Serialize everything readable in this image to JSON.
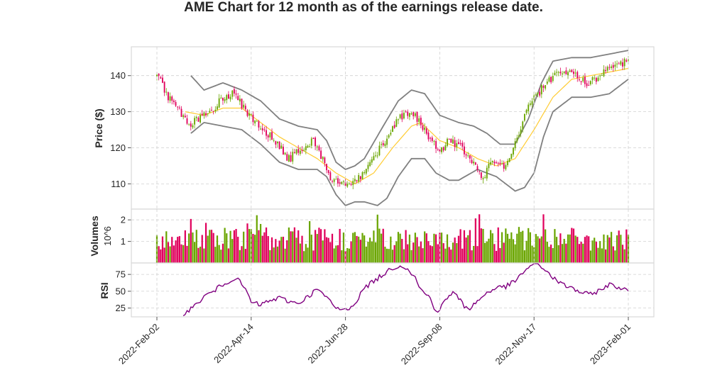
{
  "chart_data": {
    "type": "candlestick",
    "title": "AME Chart for 12 month as of the earnings release date.",
    "x_ticks": [
      "2022-Feb-02",
      "2022-Apr-14",
      "2022-Jun-28",
      "2022-Sep-08",
      "2022-Nov-17",
      "2023-Feb-01"
    ],
    "x_range_trading_days": [
      0,
      250
    ],
    "price_panel": {
      "ylabel": "Price ($)",
      "yticks": [
        110,
        120,
        130,
        140
      ],
      "ylim": [
        103,
        148
      ],
      "close_path_anchors": [
        [
          0,
          140
        ],
        [
          5,
          135
        ],
        [
          12,
          130
        ],
        [
          17,
          126
        ],
        [
          22,
          128
        ],
        [
          28,
          130
        ],
        [
          35,
          134
        ],
        [
          40,
          135
        ],
        [
          48,
          130
        ],
        [
          55,
          126
        ],
        [
          62,
          122
        ],
        [
          70,
          117
        ],
        [
          78,
          120
        ],
        [
          83,
          122
        ],
        [
          88,
          117
        ],
        [
          93,
          111
        ],
        [
          100,
          110
        ],
        [
          108,
          112
        ],
        [
          113,
          116
        ],
        [
          120,
          121
        ],
        [
          125,
          126
        ],
        [
          130,
          129
        ],
        [
          135,
          130
        ],
        [
          140,
          127
        ],
        [
          145,
          122
        ],
        [
          150,
          119
        ],
        [
          155,
          122
        ],
        [
          162,
          120
        ],
        [
          168,
          115
        ],
        [
          173,
          112
        ],
        [
          178,
          117
        ],
        [
          185,
          115
        ],
        [
          190,
          122
        ],
        [
          196,
          130
        ],
        [
          202,
          135
        ],
        [
          208,
          139
        ],
        [
          215,
          141
        ],
        [
          222,
          140
        ],
        [
          228,
          138
        ],
        [
          235,
          140
        ],
        [
          240,
          143
        ],
        [
          245,
          143
        ],
        [
          250,
          144
        ]
      ],
      "sma_anchors": [
        [
          15,
          130
        ],
        [
          25,
          129
        ],
        [
          35,
          131
        ],
        [
          45,
          131
        ],
        [
          55,
          127
        ],
        [
          65,
          123
        ],
        [
          75,
          120
        ],
        [
          85,
          117
        ],
        [
          95,
          113
        ],
        [
          105,
          110
        ],
        [
          115,
          113
        ],
        [
          125,
          120
        ],
        [
          135,
          126
        ],
        [
          140,
          127
        ],
        [
          150,
          122
        ],
        [
          160,
          120
        ],
        [
          170,
          117
        ],
        [
          180,
          115
        ],
        [
          190,
          117
        ],
        [
          200,
          125
        ],
        [
          210,
          134
        ],
        [
          220,
          139
        ],
        [
          230,
          140
        ],
        [
          240,
          141
        ],
        [
          250,
          142
        ]
      ],
      "bollinger_upper_anchors": [
        [
          18,
          140
        ],
        [
          25,
          136
        ],
        [
          35,
          138
        ],
        [
          45,
          136
        ],
        [
          55,
          133
        ],
        [
          65,
          128
        ],
        [
          75,
          126
        ],
        [
          85,
          125
        ],
        [
          90,
          122
        ],
        [
          95,
          116
        ],
        [
          100,
          114
        ],
        [
          105,
          115
        ],
        [
          110,
          117
        ],
        [
          120,
          126
        ],
        [
          128,
          133
        ],
        [
          135,
          136
        ],
        [
          142,
          135
        ],
        [
          150,
          129
        ],
        [
          160,
          127
        ],
        [
          168,
          126
        ],
        [
          175,
          124
        ],
        [
          182,
          121
        ],
        [
          190,
          121
        ],
        [
          197,
          128
        ],
        [
          204,
          138
        ],
        [
          210,
          144
        ],
        [
          220,
          145
        ],
        [
          230,
          145
        ],
        [
          240,
          146
        ],
        [
          250,
          147
        ]
      ],
      "bollinger_lower_anchors": [
        [
          18,
          124
        ],
        [
          25,
          127
        ],
        [
          35,
          126
        ],
        [
          45,
          125
        ],
        [
          55,
          121
        ],
        [
          65,
          116
        ],
        [
          75,
          114
        ],
        [
          85,
          114
        ],
        [
          90,
          112
        ],
        [
          95,
          107
        ],
        [
          100,
          104
        ],
        [
          105,
          105
        ],
        [
          110,
          105
        ],
        [
          117,
          104
        ],
        [
          122,
          106
        ],
        [
          128,
          112
        ],
        [
          135,
          117
        ],
        [
          142,
          117
        ],
        [
          148,
          113
        ],
        [
          155,
          111
        ],
        [
          160,
          111
        ],
        [
          170,
          114
        ],
        [
          180,
          112
        ],
        [
          190,
          108
        ],
        [
          195,
          109
        ],
        [
          200,
          113
        ],
        [
          205,
          123
        ],
        [
          210,
          130
        ],
        [
          220,
          134
        ],
        [
          230,
          134
        ],
        [
          240,
          135
        ],
        [
          250,
          139
        ]
      ]
    },
    "volume_panel": {
      "ylabel": "Volumes",
      "unit_label": "10^6",
      "yticks": [
        1,
        2
      ],
      "ylim": [
        0,
        2.5
      ]
    },
    "rsi_panel": {
      "ylabel": "RSI",
      "yticks": [
        25,
        50,
        75
      ],
      "ylim": [
        12,
        92
      ],
      "rsi_anchors": [
        [
          14,
          17
        ],
        [
          20,
          28
        ],
        [
          25,
          42
        ],
        [
          30,
          50
        ],
        [
          35,
          60
        ],
        [
          40,
          68
        ],
        [
          42,
          70
        ],
        [
          45,
          60
        ],
        [
          48,
          48
        ],
        [
          50,
          33
        ],
        [
          55,
          30
        ],
        [
          60,
          36
        ],
        [
          65,
          40
        ],
        [
          70,
          35
        ],
        [
          75,
          32
        ],
        [
          80,
          42
        ],
        [
          85,
          53
        ],
        [
          88,
          46
        ],
        [
          90,
          40
        ],
        [
          95,
          25
        ],
        [
          100,
          22
        ],
        [
          105,
          32
        ],
        [
          110,
          55
        ],
        [
          115,
          65
        ],
        [
          120,
          75
        ],
        [
          125,
          85
        ],
        [
          130,
          88
        ],
        [
          133,
          84
        ],
        [
          137,
          70
        ],
        [
          140,
          52
        ],
        [
          145,
          40
        ],
        [
          148,
          20
        ],
        [
          150,
          22
        ],
        [
          153,
          38
        ],
        [
          157,
          48
        ],
        [
          160,
          40
        ],
        [
          163,
          28
        ],
        [
          166,
          25
        ],
        [
          170,
          35
        ],
        [
          175,
          48
        ],
        [
          180,
          55
        ],
        [
          185,
          57
        ],
        [
          190,
          65
        ],
        [
          195,
          80
        ],
        [
          198,
          88
        ],
        [
          202,
          90
        ],
        [
          206,
          82
        ],
        [
          210,
          70
        ],
        [
          215,
          60
        ],
        [
          220,
          55
        ],
        [
          225,
          48
        ],
        [
          230,
          45
        ],
        [
          235,
          52
        ],
        [
          240,
          60
        ],
        [
          245,
          56
        ],
        [
          250,
          50
        ]
      ]
    },
    "colors": {
      "up": "#6aa500",
      "down": "#e0005c",
      "sma": "#ffcc33",
      "bands": "#808080",
      "rsi": "#800080"
    }
  }
}
